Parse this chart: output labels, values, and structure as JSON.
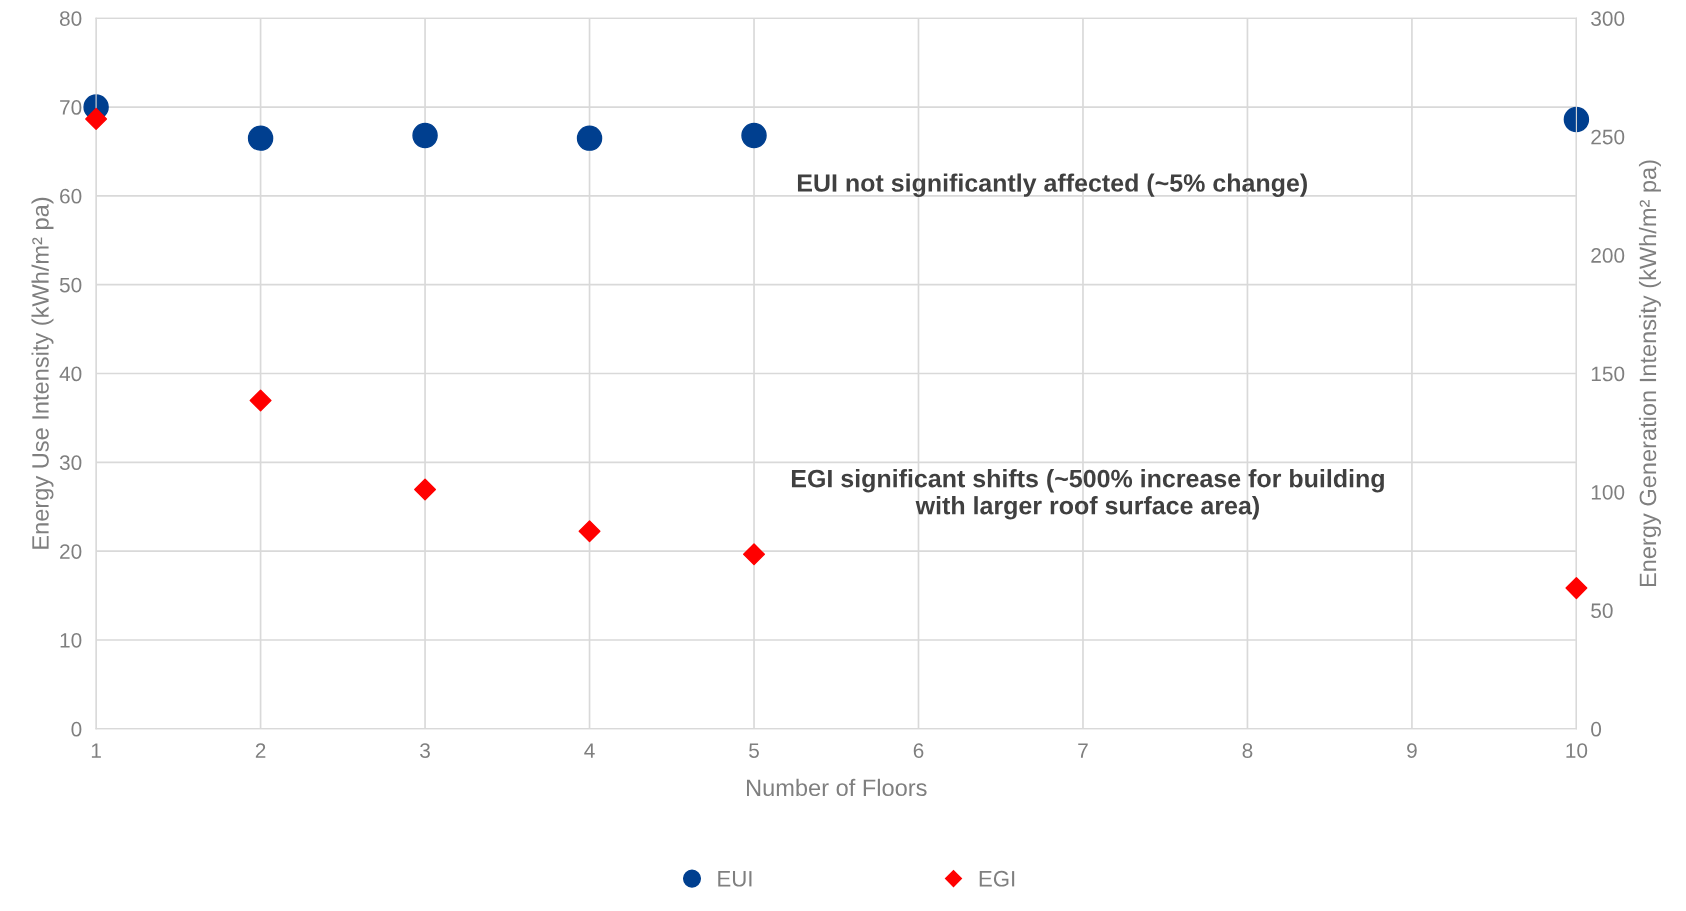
{
  "chart_data": {
    "type": "scatter",
    "xlabel": "Number of Floors",
    "ylabel": "Energy Use Intensity (kWh/m² pa)",
    "y2label": "Energy Generation Intensity (kWh/m² pa)",
    "xlim": [
      1,
      10
    ],
    "xticks": [
      1,
      2,
      3,
      4,
      5,
      6,
      7,
      8,
      9,
      10
    ],
    "ylim": [
      0,
      80
    ],
    "yticks": [
      0,
      10,
      20,
      30,
      40,
      50,
      60,
      70,
      80
    ],
    "y2lim": [
      0,
      300
    ],
    "y2ticks": [
      0,
      50,
      100,
      150,
      200,
      250,
      300
    ],
    "grid": true,
    "legend": "bottom",
    "series": [
      {
        "name": "EUI",
        "color": "#003f8f",
        "marker": "circle",
        "x": [
          1,
          2,
          3,
          4,
          5,
          10
        ],
        "values": [
          70.0,
          66.5,
          66.8,
          66.5,
          66.8,
          68.6
        ]
      },
      {
        "name": "EGI",
        "color": "#ff0000",
        "marker": "diamond",
        "axis": "y2",
        "x": [
          1,
          2,
          3,
          4,
          5,
          10
        ],
        "values": [
          257.5,
          138.6,
          101,
          83.4,
          73.7,
          59.4
        ]
      }
    ],
    "annotations": [
      "EUI not significantly affected (~5% change)",
      "EGI significant shifts (~500% increase for building\nwith larger roof surface area)"
    ]
  }
}
